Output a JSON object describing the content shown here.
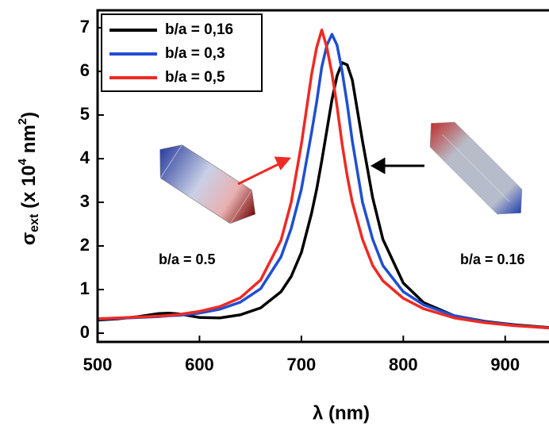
{
  "chart_data": {
    "type": "line",
    "xlabel": "λ (nm)",
    "ylabel_parts": [
      "σ",
      "ext",
      " (x 10",
      "4",
      " nm",
      "2",
      ")"
    ],
    "x": [
      500,
      520,
      540,
      560,
      570,
      580,
      600,
      620,
      640,
      660,
      680,
      690,
      700,
      710,
      715,
      720,
      725,
      730,
      735,
      740,
      745,
      750,
      760,
      770,
      780,
      800,
      820,
      850,
      880,
      910,
      943
    ],
    "series": [
      {
        "name": "b/a = 0,16",
        "color": "#000000",
        "values": [
          0.3,
          0.33,
          0.38,
          0.45,
          0.46,
          0.44,
          0.36,
          0.35,
          0.42,
          0.58,
          0.95,
          1.3,
          1.85,
          2.75,
          3.3,
          3.95,
          4.65,
          5.35,
          5.9,
          6.2,
          6.15,
          5.8,
          4.4,
          3.1,
          2.15,
          1.15,
          0.7,
          0.4,
          0.27,
          0.19,
          0.13
        ]
      },
      {
        "name": "b/a = 0,3",
        "color": "#1f4fd1",
        "values": [
          0.32,
          0.34,
          0.36,
          0.38,
          0.4,
          0.41,
          0.46,
          0.55,
          0.71,
          1.02,
          1.75,
          2.4,
          3.3,
          4.6,
          5.3,
          6.1,
          6.6,
          6.85,
          6.6,
          6.0,
          5.25,
          4.4,
          3.0,
          2.15,
          1.55,
          0.95,
          0.65,
          0.4,
          0.26,
          0.18,
          0.12
        ]
      },
      {
        "name": "b/a = 0,5",
        "color": "#ee2a24",
        "values": [
          0.33,
          0.35,
          0.37,
          0.39,
          0.41,
          0.43,
          0.5,
          0.61,
          0.81,
          1.22,
          2.13,
          3.0,
          4.33,
          5.93,
          6.55,
          6.95,
          6.55,
          5.95,
          5.2,
          4.33,
          3.6,
          3.0,
          2.15,
          1.55,
          1.2,
          0.8,
          0.56,
          0.35,
          0.24,
          0.17,
          0.12
        ]
      }
    ],
    "xlim": [
      500,
      943
    ],
    "ylim": [
      -0.2,
      7.4
    ],
    "xticks": [
      500,
      600,
      700,
      800,
      900
    ],
    "yticks": [
      0,
      1,
      2,
      3,
      4,
      5,
      6,
      7
    ],
    "legend": "upper left",
    "annotations": [
      {
        "text": "b/a = 0.5",
        "color": "#ee2a24"
      },
      {
        "text": "b/a = 0.16",
        "color": "#000000"
      }
    ]
  }
}
